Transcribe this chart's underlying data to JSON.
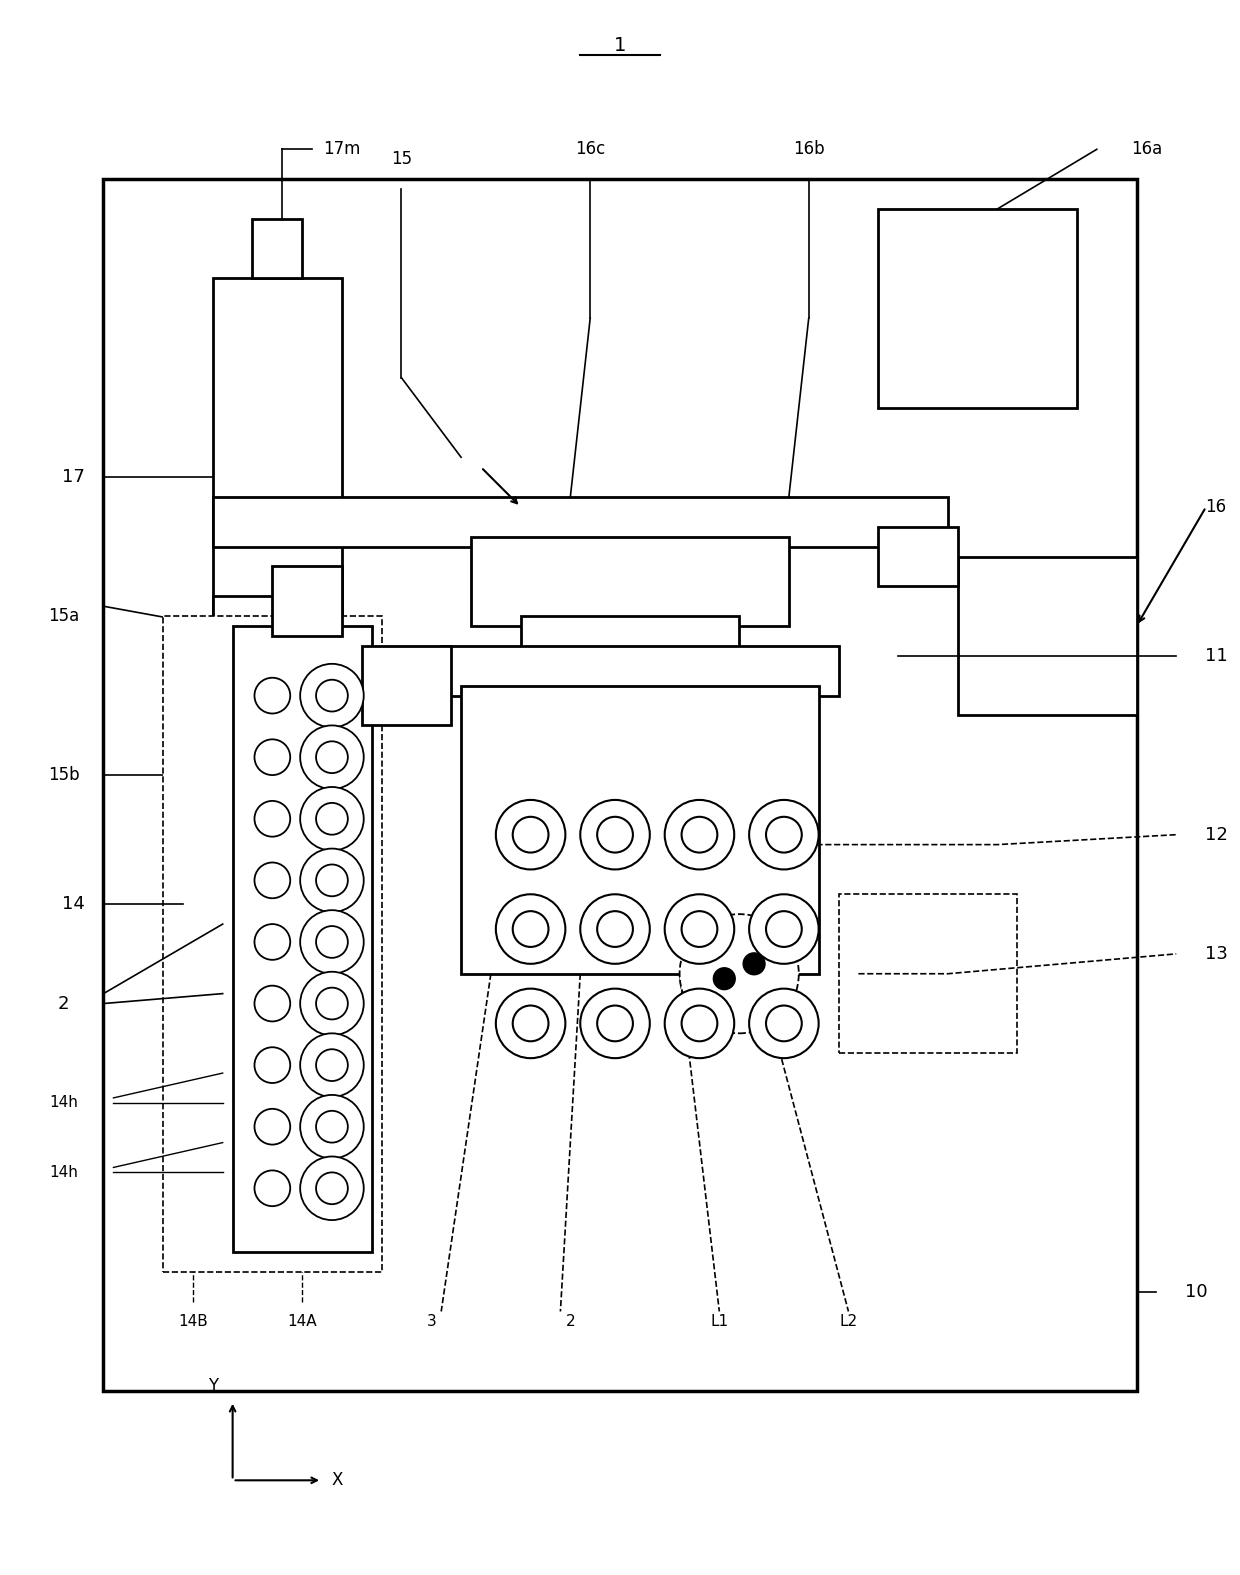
{
  "bg_color": "#ffffff",
  "line_color": "#000000",
  "fig_width": 12.4,
  "fig_height": 15.75,
  "labels": {
    "title": "1",
    "l17m": "17m",
    "l15": "15",
    "l16c": "16c",
    "l16b": "16b",
    "l16a": "16a",
    "l17": "17",
    "l15a": "15a",
    "l16": "16",
    "l11": "11",
    "l15b": "15b",
    "l12": "12",
    "l14": "14",
    "l13": "13",
    "l2a": "2",
    "l14h1": "14h",
    "l14h2": "14h",
    "l10": "10",
    "l14B": "14B",
    "l14A": "14A",
    "l3": "3",
    "l2b": "2",
    "lL1": "L1",
    "lL2": "L2",
    "lY": "Y",
    "lX": "X"
  }
}
